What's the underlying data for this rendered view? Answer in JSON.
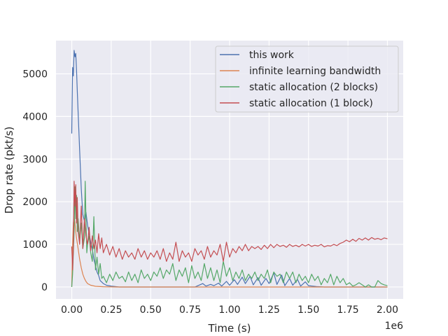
{
  "chart_data": {
    "type": "line",
    "title": "",
    "xlabel": "Time (s)",
    "ylabel": "Drop rate (pkt/s)",
    "x_offset_label": "1e6",
    "xlim": [
      -0.1,
      2.1
    ],
    "ylim": [
      -280,
      5780
    ],
    "x_ticks": [
      0.0,
      0.25,
      0.5,
      0.75,
      1.0,
      1.25,
      1.5,
      1.75,
      2.0
    ],
    "x_tick_labels": [
      "0.00",
      "0.25",
      "0.50",
      "0.75",
      "1.00",
      "1.25",
      "1.50",
      "1.75",
      "2.00"
    ],
    "y_ticks": [
      0,
      1000,
      2000,
      3000,
      4000,
      5000
    ],
    "y_tick_labels": [
      "0",
      "1000",
      "2000",
      "3000",
      "4000",
      "5000"
    ],
    "grid": true,
    "background": "#eaeaf2",
    "legend_position": "top-right",
    "series": [
      {
        "name": "this work",
        "color": "#4c72b0",
        "x": [
          0.0,
          0.005,
          0.01,
          0.015,
          0.02,
          0.025,
          0.03,
          0.035,
          0.04,
          0.05,
          0.06,
          0.07,
          0.08,
          0.09,
          0.1,
          0.11,
          0.12,
          0.13,
          0.14,
          0.15,
          0.16,
          0.17,
          0.18,
          0.2,
          0.22,
          0.25,
          0.3,
          0.4,
          0.5,
          0.6,
          0.7,
          0.75,
          0.78,
          0.8,
          0.83,
          0.85,
          0.88,
          0.9,
          0.93,
          0.95,
          0.98,
          1.0,
          1.03,
          1.05,
          1.08,
          1.1,
          1.13,
          1.15,
          1.18,
          1.2,
          1.23,
          1.25,
          1.28,
          1.3,
          1.33,
          1.35,
          1.38,
          1.4,
          1.43,
          1.45,
          1.48,
          1.5,
          1.55,
          1.6,
          1.7,
          1.8,
          1.9,
          2.0
        ],
        "values": [
          3600,
          5150,
          4950,
          5550,
          5400,
          5480,
          5100,
          4600,
          4100,
          3200,
          2300,
          1700,
          1550,
          1750,
          1450,
          1250,
          1050,
          900,
          650,
          500,
          350,
          270,
          150,
          80,
          40,
          20,
          0,
          0,
          0,
          0,
          0,
          0,
          0,
          30,
          80,
          20,
          60,
          30,
          90,
          20,
          130,
          40,
          170,
          60,
          230,
          80,
          250,
          50,
          220,
          40,
          200,
          80,
          330,
          60,
          280,
          30,
          200,
          40,
          180,
          20,
          120,
          30,
          10,
          0,
          0,
          0,
          0,
          0
        ]
      },
      {
        "name": "infinite learning bandwidth",
        "color": "#dd8452",
        "x": [
          0.0,
          0.005,
          0.01,
          0.015,
          0.02,
          0.025,
          0.03,
          0.04,
          0.05,
          0.06,
          0.07,
          0.08,
          0.09,
          0.1,
          0.12,
          0.15,
          0.2,
          0.3,
          0.5,
          1.0,
          1.5,
          2.0
        ],
        "values": [
          0,
          1000,
          1500,
          1650,
          1500,
          1300,
          1150,
          900,
          650,
          450,
          300,
          200,
          130,
          80,
          40,
          15,
          5,
          0,
          0,
          0,
          0,
          0
        ]
      },
      {
        "name": "static allocation (2 blocks)",
        "color": "#55a868",
        "x": [
          0.0,
          0.005,
          0.01,
          0.015,
          0.02,
          0.025,
          0.03,
          0.035,
          0.04,
          0.05,
          0.06,
          0.07,
          0.08,
          0.085,
          0.09,
          0.095,
          0.1,
          0.11,
          0.12,
          0.13,
          0.14,
          0.15,
          0.16,
          0.17,
          0.18,
          0.19,
          0.2,
          0.22,
          0.24,
          0.26,
          0.28,
          0.3,
          0.32,
          0.34,
          0.36,
          0.38,
          0.4,
          0.42,
          0.44,
          0.46,
          0.48,
          0.5,
          0.52,
          0.54,
          0.56,
          0.58,
          0.6,
          0.62,
          0.64,
          0.66,
          0.68,
          0.7,
          0.72,
          0.74,
          0.76,
          0.78,
          0.8,
          0.82,
          0.84,
          0.86,
          0.88,
          0.9,
          0.92,
          0.94,
          0.96,
          0.98,
          1.0,
          1.02,
          1.04,
          1.06,
          1.08,
          1.1,
          1.12,
          1.14,
          1.16,
          1.18,
          1.2,
          1.22,
          1.24,
          1.26,
          1.28,
          1.3,
          1.32,
          1.34,
          1.36,
          1.38,
          1.4,
          1.42,
          1.44,
          1.46,
          1.48,
          1.5,
          1.52,
          1.54,
          1.56,
          1.58,
          1.6,
          1.62,
          1.64,
          1.66,
          1.68,
          1.7,
          1.72,
          1.74,
          1.76,
          1.78,
          1.8,
          1.82,
          1.84,
          1.86,
          1.88,
          1.9,
          1.92,
          1.94,
          1.96,
          1.98,
          2.0
        ],
        "values": [
          0,
          300,
          800,
          1300,
          2350,
          1600,
          2150,
          1300,
          1600,
          1100,
          1500,
          900,
          1150,
          2480,
          1600,
          800,
          1000,
          1200,
          800,
          600,
          1650,
          400,
          700,
          300,
          550,
          200,
          250,
          100,
          300,
          150,
          350,
          200,
          250,
          120,
          350,
          150,
          300,
          100,
          400,
          200,
          300,
          150,
          350,
          250,
          450,
          200,
          400,
          300,
          550,
          150,
          400,
          250,
          450,
          100,
          500,
          200,
          350,
          150,
          550,
          200,
          450,
          150,
          400,
          100,
          600,
          250,
          450,
          150,
          350,
          200,
          400,
          150,
          300,
          200,
          350,
          150,
          300,
          200,
          400,
          100,
          350,
          250,
          300,
          100,
          350,
          200,
          350,
          100,
          300,
          150,
          250,
          100,
          300,
          150,
          250,
          50,
          200,
          100,
          300,
          50,
          250,
          100,
          200,
          50,
          100,
          20,
          50,
          100,
          50,
          0,
          50,
          0,
          0,
          150,
          80,
          50,
          30
        ]
      },
      {
        "name": "static allocation (1 block)",
        "color": "#c44e52",
        "x": [
          0.0,
          0.005,
          0.01,
          0.015,
          0.02,
          0.025,
          0.03,
          0.035,
          0.04,
          0.05,
          0.06,
          0.07,
          0.08,
          0.09,
          0.1,
          0.11,
          0.12,
          0.13,
          0.14,
          0.15,
          0.16,
          0.17,
          0.18,
          0.19,
          0.2,
          0.22,
          0.24,
          0.26,
          0.28,
          0.3,
          0.32,
          0.34,
          0.36,
          0.38,
          0.4,
          0.42,
          0.44,
          0.46,
          0.48,
          0.5,
          0.52,
          0.54,
          0.56,
          0.58,
          0.6,
          0.62,
          0.64,
          0.66,
          0.68,
          0.7,
          0.72,
          0.74,
          0.76,
          0.78,
          0.8,
          0.82,
          0.84,
          0.86,
          0.88,
          0.9,
          0.92,
          0.94,
          0.96,
          0.98,
          1.0,
          1.02,
          1.04,
          1.06,
          1.08,
          1.1,
          1.12,
          1.14,
          1.16,
          1.18,
          1.2,
          1.22,
          1.24,
          1.26,
          1.28,
          1.3,
          1.32,
          1.34,
          1.36,
          1.38,
          1.4,
          1.42,
          1.44,
          1.46,
          1.48,
          1.5,
          1.52,
          1.54,
          1.56,
          1.58,
          1.6,
          1.62,
          1.64,
          1.66,
          1.68,
          1.7,
          1.72,
          1.74,
          1.76,
          1.78,
          1.8,
          1.82,
          1.84,
          1.86,
          1.88,
          1.9,
          1.92,
          1.94,
          1.96,
          1.98,
          2.0
        ],
        "values": [
          950,
          400,
          900,
          2480,
          1900,
          2400,
          1500,
          2100,
          1300,
          1000,
          1900,
          900,
          1600,
          1200,
          1000,
          1400,
          850,
          1200,
          900,
          1100,
          800,
          1250,
          900,
          1150,
          800,
          1000,
          750,
          950,
          700,
          900,
          650,
          850,
          700,
          800,
          650,
          900,
          700,
          850,
          650,
          800,
          700,
          850,
          650,
          900,
          600,
          800,
          650,
          1050,
          600,
          850,
          700,
          800,
          600,
          900,
          750,
          850,
          650,
          950,
          700,
          850,
          750,
          1000,
          600,
          1050,
          700,
          900,
          800,
          950,
          850,
          1000,
          850,
          950,
          900,
          950,
          880,
          980,
          900,
          1000,
          920,
          1000,
          950,
          980,
          930,
          1000,
          950,
          980,
          940,
          1000,
          960,
          1000,
          950,
          980,
          960,
          1000,
          940,
          970,
          960,
          1000,
          970,
          1020,
          1050,
          1100,
          1060,
          1120,
          1070,
          1140,
          1100,
          1150,
          1100,
          1160,
          1120,
          1140,
          1110,
          1150,
          1130
        ]
      }
    ]
  }
}
